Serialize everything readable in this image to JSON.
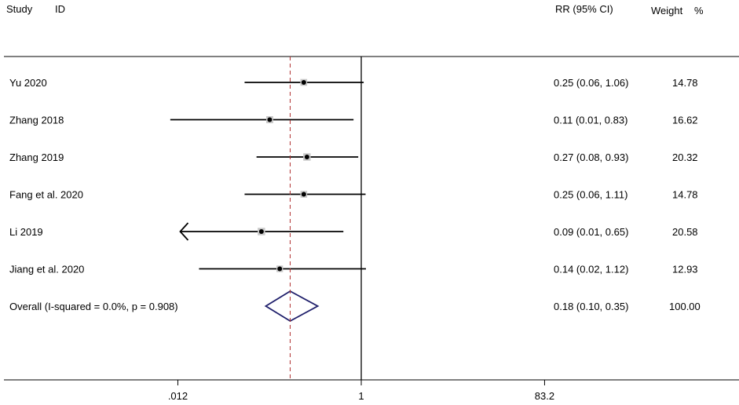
{
  "chart_data": {
    "type": "forest",
    "header": {
      "study_col": "Study",
      "id_col": "ID",
      "effect_col": "RR (95% CI)",
      "weight_col": "Weight",
      "weight_unit": "%"
    },
    "studies": [
      {
        "name": "Yu 2020",
        "rr": 0.25,
        "lo": 0.06,
        "hi": 1.06,
        "ci_text": "0.25 (0.06, 1.06)",
        "weight": "14.78"
      },
      {
        "name": "Zhang 2018",
        "rr": 0.11,
        "lo": 0.01,
        "hi": 0.83,
        "ci_text": "0.11 (0.01, 0.83)",
        "weight": "16.62"
      },
      {
        "name": "Zhang 2019",
        "rr": 0.27,
        "lo": 0.08,
        "hi": 0.93,
        "ci_text": "0.27 (0.08, 0.93)",
        "weight": "20.32"
      },
      {
        "name": "Fang et al. 2020",
        "rr": 0.25,
        "lo": 0.06,
        "hi": 1.11,
        "ci_text": "0.25 (0.06, 1.11)",
        "weight": "14.78"
      },
      {
        "name": "Li 2019",
        "rr": 0.09,
        "lo": 0.01,
        "hi": 0.65,
        "ci_text": "0.09 (0.01, 0.65)",
        "weight": "20.58",
        "lo_truncated": true
      },
      {
        "name": "Jiang et al. 2020",
        "rr": 0.14,
        "lo": 0.02,
        "hi": 1.12,
        "ci_text": "0.14 (0.02, 1.12)",
        "weight": "12.93"
      }
    ],
    "overall": {
      "label": "Overall  (I-squared = 0.0%, p = 0.908)",
      "rr": 0.18,
      "lo": 0.1,
      "hi": 0.35,
      "ci_text": "0.18 (0.10, 0.35)",
      "weight": "100.00"
    },
    "x_scale": "log",
    "x_ticks": [
      {
        "value": 0.012,
        "label": ".012"
      },
      {
        "value": 1,
        "label": "1"
      },
      {
        "value": 83.2,
        "label": "83.2"
      }
    ],
    "xlim": [
      0.012,
      83.2
    ],
    "null_value": 1,
    "colors": {
      "ci_line": "#000000",
      "overall_diamond": "#1f1f6b",
      "overall_reference_line": "#b03030",
      "box_fill": "#c8c8c8"
    }
  }
}
